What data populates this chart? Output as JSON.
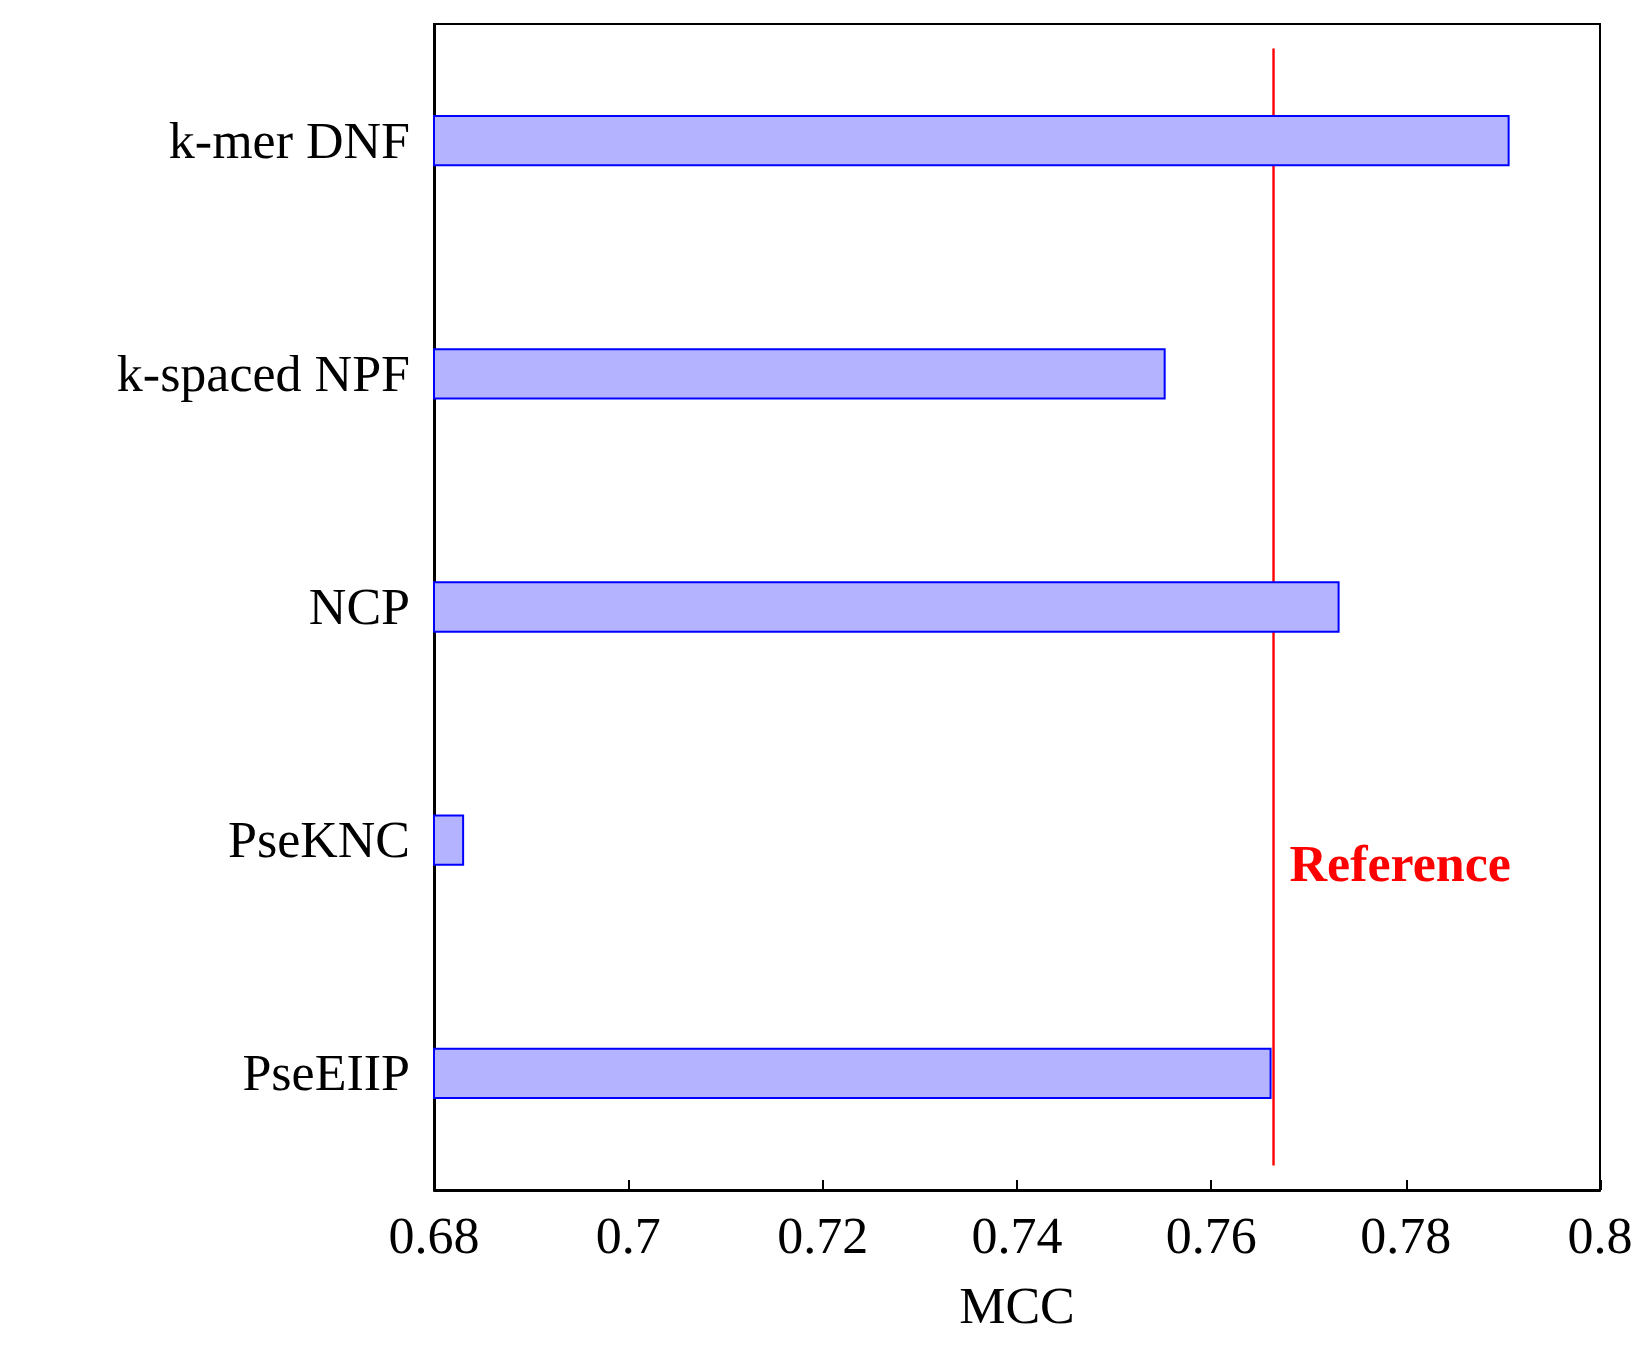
{
  "chart_data": {
    "type": "bar",
    "orientation": "horizontal",
    "xlabel": "MCC",
    "categories": [
      "k-mer DNF",
      "k-spaced NPF",
      "NCP",
      "PseKNC",
      "PseEIIP"
    ],
    "values": [
      0.7907,
      0.7553,
      0.7732,
      0.6831,
      0.7662
    ],
    "color": "#b3b3ff",
    "xlim": [
      0.68,
      0.8
    ],
    "xticks": [
      0.68,
      0.7,
      0.72,
      0.74,
      0.76,
      0.78,
      0.8
    ],
    "ref_lines": [
      {
        "axis": "x",
        "value": 0.7664,
        "label": "Reference",
        "color": "#ff0000"
      }
    ],
    "grid": false
  }
}
